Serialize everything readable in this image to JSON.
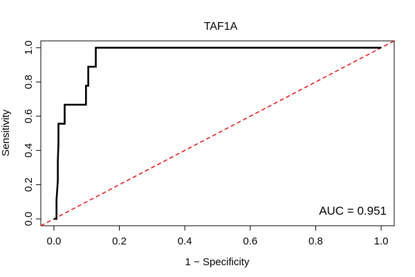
{
  "chart_data": {
    "type": "line",
    "title": "TAF1A",
    "xlabel": "1 − Specificity",
    "ylabel": "Sensitivity",
    "xlim": [
      -0.04,
      1.04
    ],
    "ylim": [
      -0.04,
      1.04
    ],
    "x_ticks": [
      0.0,
      0.2,
      0.4,
      0.6,
      0.8,
      1.0
    ],
    "y_ticks": [
      0.0,
      0.2,
      0.4,
      0.6,
      0.8,
      1.0
    ],
    "x_tick_labels": [
      "0.0",
      "0.2",
      "0.4",
      "0.6",
      "0.8",
      "1.0"
    ],
    "y_tick_labels": [
      "0.0",
      "0.2",
      "0.4",
      "0.6",
      "0.8",
      "1.0"
    ],
    "grid": false,
    "annotation": "AUC = 0.951",
    "colors": {
      "roc": "#000000",
      "reference": "#e41a1c"
    },
    "series": [
      {
        "style": "step",
        "color": "#000000",
        "x": [
          0.0,
          0.008,
          0.008,
          0.012,
          0.012,
          0.014,
          0.014,
          0.018,
          0.018,
          0.033,
          0.033,
          0.098,
          0.098,
          0.105,
          0.105,
          0.128,
          0.128,
          1.0
        ],
        "y": [
          0.0,
          0.0,
          0.111,
          0.222,
          0.333,
          0.444,
          0.556,
          0.556,
          0.556,
          0.556,
          0.667,
          0.667,
          0.778,
          0.778,
          0.889,
          0.889,
          1.0,
          1.0
        ]
      },
      {
        "style": "dashed",
        "color": "#e41a1c",
        "x": [
          -0.04,
          1.04
        ],
        "y": [
          -0.04,
          1.04
        ]
      }
    ]
  }
}
